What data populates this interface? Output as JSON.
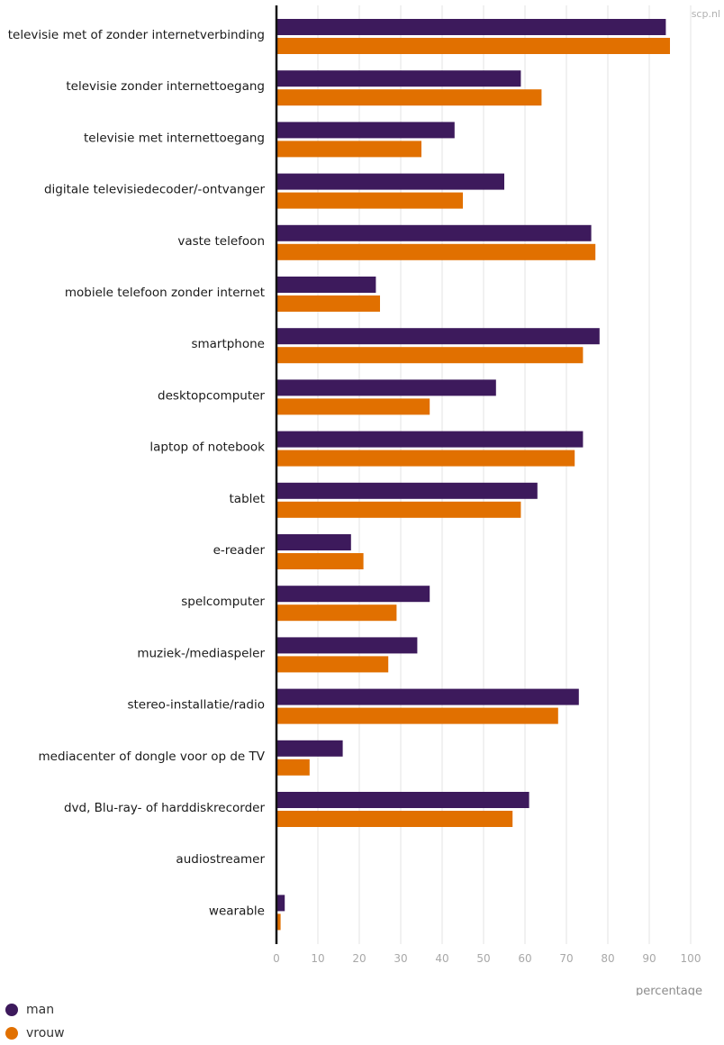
{
  "source_label": "scp.nl",
  "chart_data": {
    "type": "bar",
    "orientation": "horizontal",
    "categories": [
      "televisie met of zonder internetverbinding",
      "televisie zonder internettoegang",
      "televisie met internettoegang",
      "digitale televisiedecoder/-ontvanger",
      "vaste telefoon",
      "mobiele telefoon zonder internet",
      "smartphone",
      "desktopcomputer",
      "laptop of notebook",
      "tablet",
      "e-reader",
      "spelcomputer",
      "muziek-/mediaspeler",
      "stereo-installatie/radio",
      "mediacenter of dongle voor op de TV",
      "dvd, Blu-ray- of harddiskrecorder",
      "audiostreamer",
      "wearable"
    ],
    "series": [
      {
        "name": "man",
        "color": "#3d1a5c",
        "values": [
          94,
          59,
          43,
          55,
          76,
          24,
          78,
          53,
          74,
          63,
          18,
          37,
          34,
          73,
          16,
          61,
          0,
          2
        ]
      },
      {
        "name": "vrouw",
        "color": "#e17000",
        "values": [
          95,
          64,
          35,
          45,
          77,
          25,
          74,
          37,
          72,
          59,
          21,
          29,
          27,
          68,
          8,
          57,
          0,
          1
        ]
      }
    ],
    "xlabel": "percentage",
    "xlim": [
      0,
      100
    ],
    "xticks": [
      0,
      10,
      20,
      30,
      40,
      50,
      60,
      70,
      80,
      90,
      100
    ],
    "grid": true,
    "legend_position": "bottom-left"
  }
}
